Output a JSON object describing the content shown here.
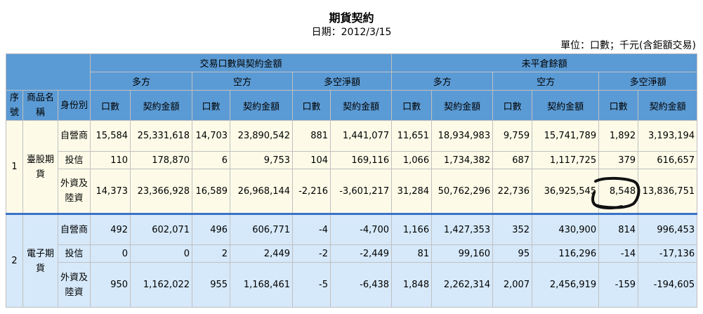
{
  "page": {
    "title": "期貨契約",
    "date": "日期：2012/3/15",
    "unit": "單位：口數；千元(含鉅額交易)"
  },
  "table": {
    "group_headers": [
      "交易口數與契約金額",
      "未平倉餘額"
    ],
    "side_headers": [
      "多方",
      "空方",
      "多空淨額",
      "多方",
      "空方",
      "多空淨額"
    ],
    "col_headers": {
      "seq": "序號",
      "product": "商品名稱",
      "identity": "身份別",
      "lots": "口數",
      "amount": "契約金額"
    },
    "groups": [
      {
        "seq": "1",
        "product": "臺股期貨",
        "rows": [
          {
            "identity": "自營商",
            "values": [
              "15,584",
              "25,331,618",
              "14,703",
              "23,890,542",
              "881",
              "1,441,077",
              "11,651",
              "18,934,983",
              "9,759",
              "15,741,789",
              "1,892",
              "3,193,194"
            ]
          },
          {
            "identity": "投信",
            "values": [
              "110",
              "178,870",
              "6",
              "9,753",
              "104",
              "169,116",
              "1,066",
              "1,734,382",
              "687",
              "1,117,725",
              "379",
              "616,657"
            ]
          },
          {
            "identity": "外資及陸資",
            "values": [
              "14,373",
              "23,366,928",
              "16,589",
              "26,968,144",
              "-2,216",
              "-3,601,217",
              "31,284",
              "50,762,296",
              "22,736",
              "36,925,545",
              "8,548",
              "13,836,751"
            ]
          }
        ]
      },
      {
        "seq": "2",
        "product": "電子期貨",
        "rows": [
          {
            "identity": "自營商",
            "values": [
              "492",
              "602,071",
              "496",
              "606,771",
              "-4",
              "-4,700",
              "1,166",
              "1,427,353",
              "352",
              "430,900",
              "814",
              "996,453"
            ]
          },
          {
            "identity": "投信",
            "values": [
              "0",
              "0",
              "2",
              "2,449",
              "-2",
              "-2,449",
              "81",
              "99,160",
              "95",
              "116,296",
              "-14",
              "-17,136"
            ]
          },
          {
            "identity": "外資及陸資",
            "values": [
              "950",
              "1,162,022",
              "955",
              "1,168,461",
              "-5",
              "-6,438",
              "1,848",
              "2,262,314",
              "2,007",
              "2,456,919",
              "-159",
              "-194,605"
            ]
          }
        ]
      }
    ]
  }
}
